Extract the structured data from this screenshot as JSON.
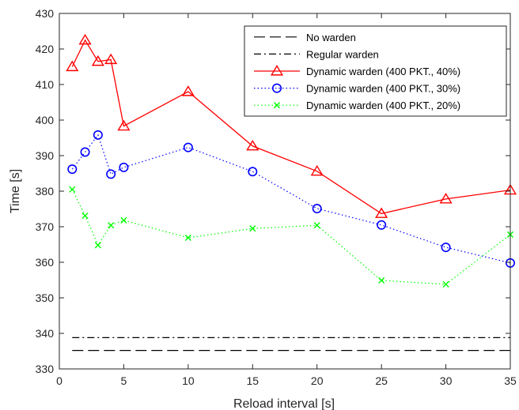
{
  "chart_data": {
    "type": "line",
    "title": "",
    "xlabel": "Reload interval [s]",
    "ylabel": "Time [s]",
    "xlim": [
      0,
      35
    ],
    "ylim": [
      330,
      430
    ],
    "xticks": [
      0,
      5,
      10,
      15,
      20,
      25,
      30,
      35
    ],
    "yticks": [
      330,
      340,
      350,
      360,
      370,
      380,
      390,
      400,
      410,
      420,
      430
    ],
    "grid": false,
    "legend_position": "top-right",
    "series": [
      {
        "name": "No warden",
        "color": "#000000",
        "line_style": "dashed",
        "marker": "none",
        "x": [
          1,
          35
        ],
        "y": [
          335.2,
          335.2
        ]
      },
      {
        "name": "Regular warden",
        "color": "#000000",
        "line_style": "dashdot",
        "marker": "none",
        "x": [
          1,
          35
        ],
        "y": [
          338.8,
          338.8
        ]
      },
      {
        "name": "Dynamic warden (400 PKT., 40%)",
        "color": "#ff0000",
        "line_style": "solid",
        "marker": "triangle",
        "x": [
          1,
          2,
          3,
          4,
          5,
          10,
          15,
          20,
          25,
          30,
          35
        ],
        "y": [
          415,
          422.5,
          416.5,
          417,
          398.3,
          408,
          392.7,
          385.6,
          373.7,
          377.8,
          380.3
        ]
      },
      {
        "name": "Dynamic warden (400 PKT., 30%)",
        "color": "#0000ff",
        "line_style": "dotted",
        "marker": "circle",
        "x": [
          1,
          2,
          3,
          4,
          5,
          10,
          15,
          20,
          25,
          30,
          35
        ],
        "y": [
          386.2,
          391,
          395.8,
          384.8,
          386.7,
          392.3,
          385.5,
          375.1,
          370.5,
          364.2,
          359.8
        ]
      },
      {
        "name": "Dynamic warden (400 PKT., 20%)",
        "color": "#00ff00",
        "line_style": "dotted",
        "marker": "x",
        "x": [
          1,
          2,
          3,
          4,
          5,
          10,
          15,
          20,
          25,
          30,
          35
        ],
        "y": [
          380.5,
          373.1,
          364.8,
          370.4,
          371.8,
          366.9,
          369.5,
          370.4,
          354.9,
          353.8,
          367.8
        ]
      }
    ]
  }
}
